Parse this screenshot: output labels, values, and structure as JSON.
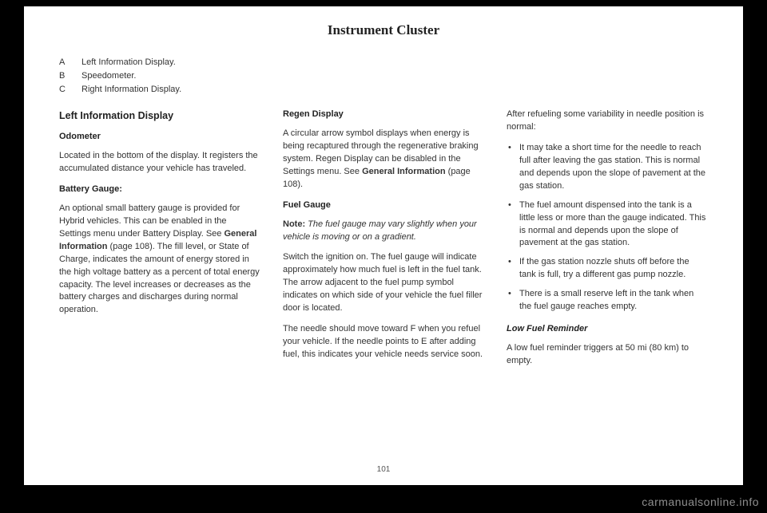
{
  "page_title": "Instrument Cluster",
  "legend": [
    {
      "letter": "A",
      "text": "Left Information Display."
    },
    {
      "letter": "B",
      "text": "Speedometer."
    },
    {
      "letter": "C",
      "text": "Right Information Display."
    }
  ],
  "col1": {
    "heading": "Left Information Display",
    "odometer_heading": "Odometer",
    "odometer_para": "Located in the bottom of the display. It registers the accumulated distance your vehicle has traveled.",
    "battery_heading": "Battery Gauge:",
    "battery_para_1": "An optional small battery gauge is provided for Hybrid vehicles. This can be enabled in the Settings menu under Battery Display. See ",
    "battery_ref": "General Information",
    "battery_para_2": " (page 108).  The fill level, or State of Charge, indicates the amount of energy stored in the high voltage battery as a percent of total energy capacity. The level increases or decreases as the battery charges and discharges during normal operation."
  },
  "col2": {
    "regen_heading": "Regen Display",
    "regen_para_1": "A circular arrow symbol displays when energy is being recaptured through the regenerative braking system. Regen Display can be disabled in the Settings menu.  See ",
    "regen_ref": "General Information",
    "regen_para_2": " (page 108).",
    "fuel_heading": "Fuel Gauge",
    "note_label": "Note:",
    "note_text": " The fuel gauge may vary slightly when your vehicle is moving or on a gradient.",
    "fuel_para1": "Switch the ignition on. The fuel gauge will indicate approximately how much fuel is left in the fuel tank. The arrow adjacent to the fuel pump symbol indicates on which side of your vehicle the fuel filler door is located.",
    "fuel_para2": "The needle should move toward F when you refuel your vehicle. If the needle points to E after adding fuel, this indicates your vehicle needs service soon."
  },
  "col3": {
    "intro": "After refueling some variability in needle position is normal:",
    "bullets": [
      "It may take a short time for the needle to reach full after leaving the gas station. This is normal and depends upon the slope of pavement at the gas station.",
      "The fuel amount dispensed into the tank is a little less or more than the gauge indicated. This is normal and depends upon the slope of pavement at the gas station.",
      "If the gas station nozzle shuts off before the tank is full, try a different gas pump nozzle.",
      "There is a small reserve left in the tank when the fuel gauge reaches empty."
    ],
    "lowfuel_heading": "Low Fuel Reminder",
    "lowfuel_para": "A low fuel reminder triggers at 50 mi (80 km) to empty."
  },
  "page_number": "101",
  "watermark": "carmanualsonline.info"
}
